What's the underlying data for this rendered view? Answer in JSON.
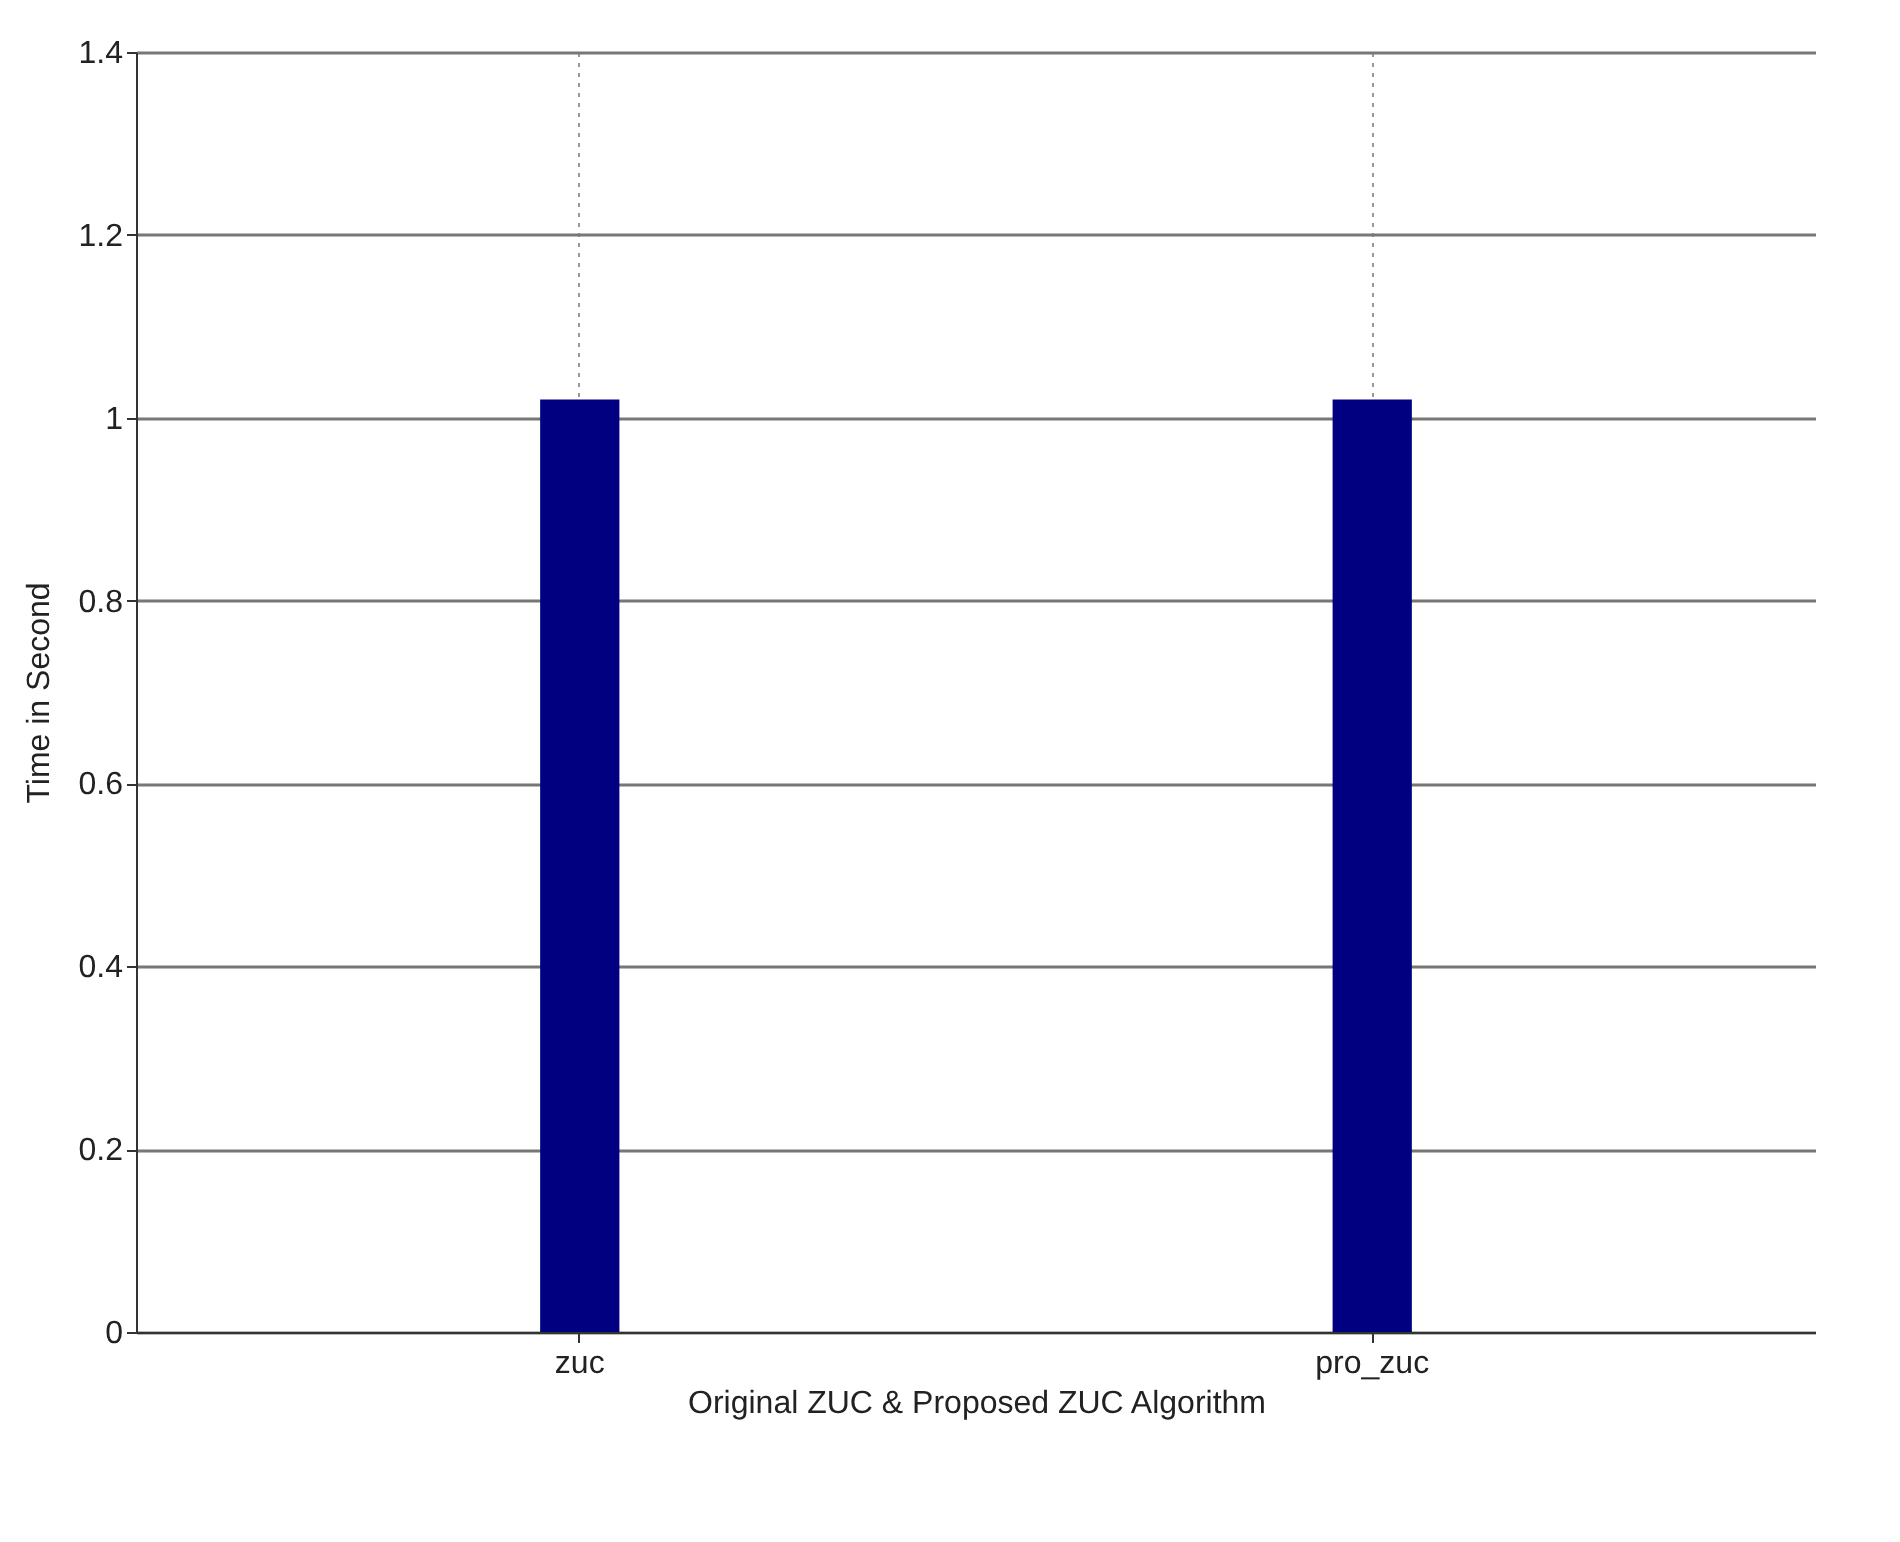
{
  "chart_data": {
    "type": "bar",
    "xlabel": "Original ZUC & Proposed ZUC Algorithm",
    "ylabel": "Time in Second",
    "categories": [
      "zuc",
      "pro_zuc"
    ],
    "values": [
      1.02,
      1.02
    ],
    "color": "#000080",
    "ylim": [
      0,
      1.4
    ],
    "yticks": [
      0,
      0.2,
      0.4,
      0.6,
      0.8,
      1,
      1.2,
      1.4
    ],
    "grid": true
  }
}
